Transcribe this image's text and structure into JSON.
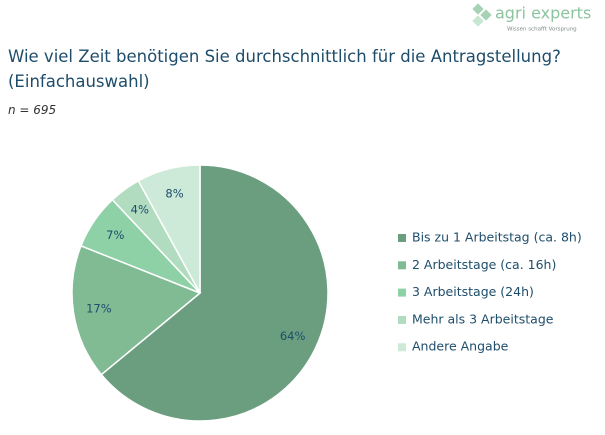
{
  "logo": {
    "name": "agri experts",
    "tagline": "Wissen schafft Vorsprung"
  },
  "chart_data": {
    "type": "pie",
    "title": "Wie viel Zeit benötigen Sie durchschnittlich für die Antragstellung? (Einfachauswahl)",
    "subtitle": "n = 695",
    "categories": [
      "Bis zu 1 Arbeitstag (ca. 8h)",
      "2 Arbeitstage (ca. 16h)",
      "3 Arbeitstage (24h)",
      "Mehr als 3 Arbeitstage",
      "Andere Angabe"
    ],
    "values": [
      64,
      17,
      7,
      4,
      8
    ],
    "value_labels": [
      "64%",
      "17%",
      "7%",
      "4%",
      "8%"
    ],
    "colors": [
      "#6a9e7f",
      "#80bb94",
      "#8fd1a6",
      "#b1dcc0",
      "#cde9d8"
    ],
    "legend": "right"
  }
}
